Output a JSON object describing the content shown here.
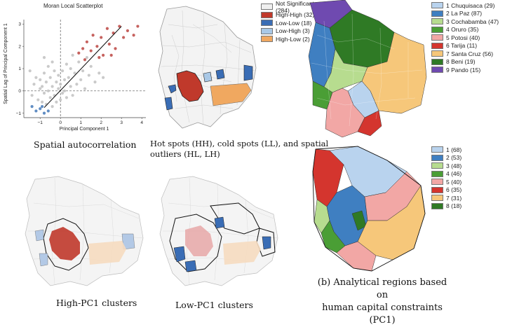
{
  "scatter": {
    "title": "Moran Local Scatterplot",
    "xlabel": "Principal Component 1",
    "ylabel": "Spatial Lag of Principal Component 1",
    "caption": "Spatial autocorrelation"
  },
  "chart_data": {
    "type": "scatter",
    "title": "Moran Local Scatterplot",
    "xlabel": "Principal Component 1",
    "ylabel": "Spatial Lag of Principal Component 1",
    "xlim": [
      -1.8,
      4.2
    ],
    "ylim": [
      -1.2,
      3.2
    ],
    "x_ticks": [
      -1,
      0,
      1,
      2,
      3,
      4
    ],
    "y_ticks": [
      -1,
      0,
      1,
      2,
      3
    ],
    "grid": false,
    "colors": {
      "not_significant": "#c4c4c4",
      "high_high": "#c0504d",
      "low_low": "#4f81bd",
      "fit_line": "#000000",
      "reference_lines": "#555555"
    },
    "fit_line": {
      "x": [
        -0.8,
        3.0
      ],
      "y": [
        -0.75,
        2.9
      ]
    },
    "series": [
      {
        "group": "Not Significant",
        "points": [
          [
            -1.4,
            -0.2
          ],
          [
            -1.3,
            0.3
          ],
          [
            -1.2,
            0.6
          ],
          [
            -1.1,
            -0.4
          ],
          [
            -1.0,
            0.1
          ],
          [
            -1.0,
            0.5
          ],
          [
            -0.9,
            -0.5
          ],
          [
            -0.9,
            0.2
          ],
          [
            -0.8,
            0.8
          ],
          [
            -0.8,
            -0.1
          ],
          [
            -0.7,
            0.4
          ],
          [
            -0.7,
            -0.6
          ],
          [
            -0.6,
            0.0
          ],
          [
            -0.6,
            1.1
          ],
          [
            -0.5,
            -0.3
          ],
          [
            -0.5,
            0.6
          ],
          [
            -0.4,
            0.2
          ],
          [
            -0.4,
            -0.7
          ],
          [
            -0.3,
            0.9
          ],
          [
            -0.3,
            -0.2
          ],
          [
            -0.2,
            0.4
          ],
          [
            -0.2,
            -0.5
          ],
          [
            -0.1,
            0.1
          ],
          [
            -0.1,
            0.7
          ],
          [
            0.0,
            -0.4
          ],
          [
            0.0,
            0.3
          ],
          [
            0.1,
            0.9
          ],
          [
            0.1,
            -0.1
          ],
          [
            0.2,
            0.5
          ],
          [
            0.2,
            0.0
          ],
          [
            0.3,
            1.2
          ],
          [
            0.3,
            -0.3
          ],
          [
            0.4,
            0.6
          ],
          [
            0.5,
            0.2
          ],
          [
            0.5,
            1.0
          ],
          [
            0.6,
            -0.2
          ],
          [
            0.7,
            0.8
          ],
          [
            0.8,
            0.3
          ],
          [
            0.9,
            1.3
          ],
          [
            1.0,
            0.5
          ],
          [
            1.1,
            0.9
          ],
          [
            1.2,
            0.1
          ],
          [
            1.4,
            0.7
          ],
          [
            1.5,
            1.1
          ],
          [
            1.7,
            0.4
          ],
          [
            1.9,
            0.8
          ],
          [
            2.1,
            0.6
          ],
          [
            -1.5,
            0.9
          ],
          [
            -0.8,
            1.5
          ],
          [
            -0.4,
            1.3
          ],
          [
            0.6,
            1.6
          ],
          [
            1.3,
            1.5
          ]
        ]
      },
      {
        "group": "High-High",
        "points": [
          [
            0.9,
            1.7
          ],
          [
            1.1,
            1.9
          ],
          [
            1.3,
            2.2
          ],
          [
            1.5,
            1.8
          ],
          [
            1.6,
            2.5
          ],
          [
            1.8,
            2.0
          ],
          [
            2.0,
            2.4
          ],
          [
            2.1,
            1.6
          ],
          [
            2.3,
            2.8
          ],
          [
            2.4,
            2.1
          ],
          [
            2.6,
            2.6
          ],
          [
            2.7,
            1.9
          ],
          [
            2.9,
            2.9
          ],
          [
            3.1,
            2.4
          ],
          [
            3.3,
            2.7
          ],
          [
            3.6,
            2.5
          ],
          [
            3.8,
            2.9
          ],
          [
            1.2,
            1.4
          ],
          [
            1.9,
            1.5
          ],
          [
            2.5,
            1.6
          ]
        ]
      },
      {
        "group": "Low-Low",
        "points": [
          [
            -1.4,
            -0.7
          ],
          [
            -1.2,
            -0.9
          ],
          [
            -1.0,
            -0.8
          ],
          [
            -0.8,
            -1.0
          ],
          [
            -0.6,
            -0.9
          ],
          [
            -0.9,
            -0.7
          ]
        ]
      }
    ]
  },
  "lisa_map": {
    "caption_line1": "Hot spots (HH), cold spots (LL), and spatial",
    "caption_line2": "outliers (HL, LH)",
    "legend": [
      {
        "label": "Not Significant (284)",
        "color": "#f0f0f0"
      },
      {
        "label": "High-High (32)",
        "color": "#c0392b"
      },
      {
        "label": "Low-Low (18)",
        "color": "#3a6db5"
      },
      {
        "label": "Low-High (3)",
        "color": "#a9c8e6"
      },
      {
        "label": "High-Low (2)",
        "color": "#f0a860"
      }
    ]
  },
  "departments_map": {
    "legend": [
      {
        "label": "1 Chuquisaca (29)",
        "color": "#b9d3ee"
      },
      {
        "label": "2 La Paz (87)",
        "color": "#3f7fc1"
      },
      {
        "label": "3 Cochabamba (47)",
        "color": "#b7dc8f"
      },
      {
        "label": "4 Oruro (35)",
        "color": "#4a9e35"
      },
      {
        "label": "5 Potosi (40)",
        "color": "#f2a7a5"
      },
      {
        "label": "6 Tarija (11)",
        "color": "#d4352e"
      },
      {
        "label": "7 Santa Cruz (56)",
        "color": "#f6c77a"
      },
      {
        "label": "8 Beni (19)",
        "color": "#2f7a25"
      },
      {
        "label": "9 Pando (15)",
        "color": "#6f4ab0"
      }
    ]
  },
  "regions_map": {
    "caption_line1": "(b) Analytical regions based on",
    "caption_line2": "human capital constraints (PC1)",
    "legend": [
      {
        "label": "1 (68)",
        "color": "#b9d3ee"
      },
      {
        "label": "2 (53)",
        "color": "#3f7fc1"
      },
      {
        "label": "3 (48)",
        "color": "#b7dc8f"
      },
      {
        "label": "4 (46)",
        "color": "#4a9e35"
      },
      {
        "label": "5 (40)",
        "color": "#f2a7a5"
      },
      {
        "label": "6 (35)",
        "color": "#d4352e"
      },
      {
        "label": "7 (31)",
        "color": "#f6c77a"
      },
      {
        "label": "8 (18)",
        "color": "#2f7a25"
      }
    ]
  },
  "high_map": {
    "caption": "High-PC1 clusters"
  },
  "low_map": {
    "caption": "Low-PC1 clusters"
  }
}
